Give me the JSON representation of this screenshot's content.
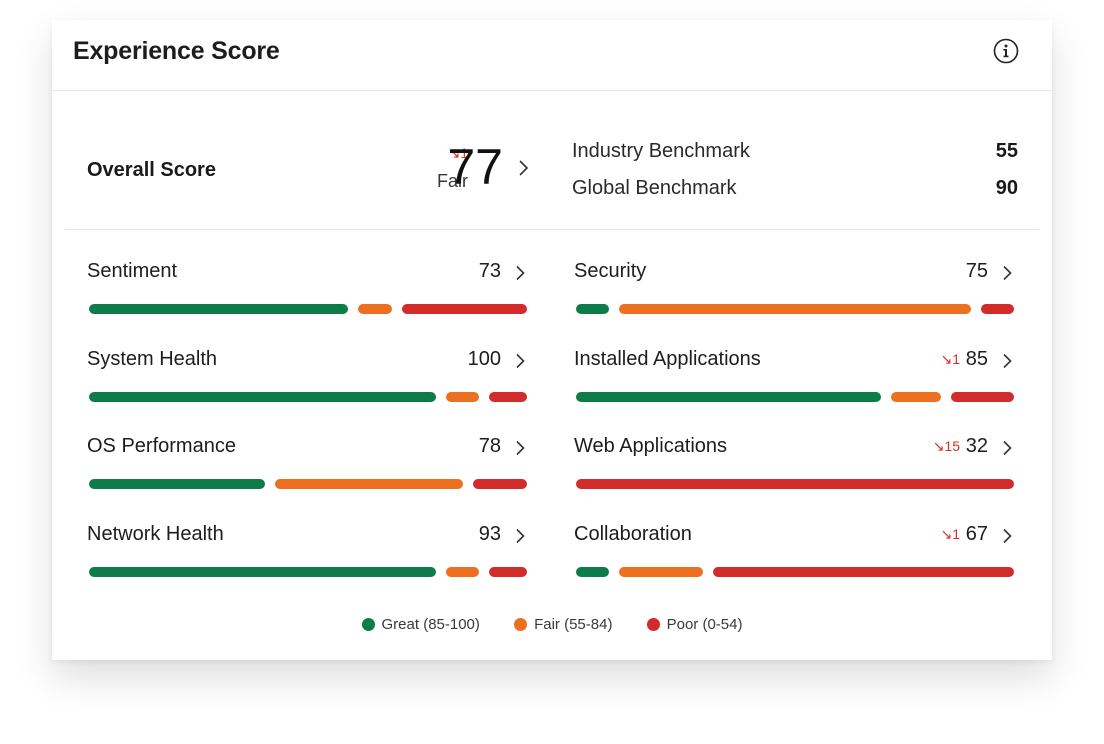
{
  "card": {
    "title": "Experience Score"
  },
  "icons": {
    "info": "info-circle-icon",
    "chevron": "chevron-right-icon",
    "trend_down": "arrow-down-right-icon"
  },
  "colors": {
    "great": "#0e7c4a",
    "fair": "#ed7020",
    "poor": "#d22b2b",
    "delta": "#d93025"
  },
  "overall": {
    "label": "Overall Score",
    "value": "77",
    "rating": "Fair",
    "delta": "↘1"
  },
  "benchmarks": [
    {
      "label": "Industry Benchmark",
      "value": "55"
    },
    {
      "label": "Global Benchmark",
      "value": "90"
    }
  ],
  "metrics": [
    {
      "label": "Sentiment",
      "value": "73",
      "delta": "",
      "distribution": {
        "great": 0.62,
        "fair": 0.08,
        "poor": 0.3
      }
    },
    {
      "label": "Security",
      "value": "75",
      "delta": "",
      "distribution": {
        "great": 0.08,
        "fair": 0.84,
        "poor": 0.08
      }
    },
    {
      "label": "System Health",
      "value": "100",
      "delta": "",
      "distribution": {
        "great": 0.83,
        "fair": 0.08,
        "poor": 0.09
      }
    },
    {
      "label": "Installed Applications",
      "value": "85",
      "delta": "↘1",
      "distribution": {
        "great": 0.73,
        "fair": 0.12,
        "poor": 0.15
      }
    },
    {
      "label": "OS Performance",
      "value": "78",
      "delta": "",
      "distribution": {
        "great": 0.42,
        "fair": 0.45,
        "poor": 0.13
      }
    },
    {
      "label": "Web Applications",
      "value": "32",
      "delta": "↘15",
      "distribution": {
        "great": 0,
        "fair": 0,
        "poor": 1.0
      }
    },
    {
      "label": "Network Health",
      "value": "93",
      "delta": "",
      "distribution": {
        "great": 0.83,
        "fair": 0.08,
        "poor": 0.09
      }
    },
    {
      "label": "Collaboration",
      "value": "67",
      "delta": "↘1",
      "distribution": {
        "great": 0.08,
        "fair": 0.2,
        "poor": 0.72
      }
    }
  ],
  "legend": [
    {
      "key": "great",
      "label": "Great (85-100)"
    },
    {
      "key": "fair",
      "label": "Fair (55-84)"
    },
    {
      "key": "poor",
      "label": "Poor (0-54)"
    }
  ]
}
